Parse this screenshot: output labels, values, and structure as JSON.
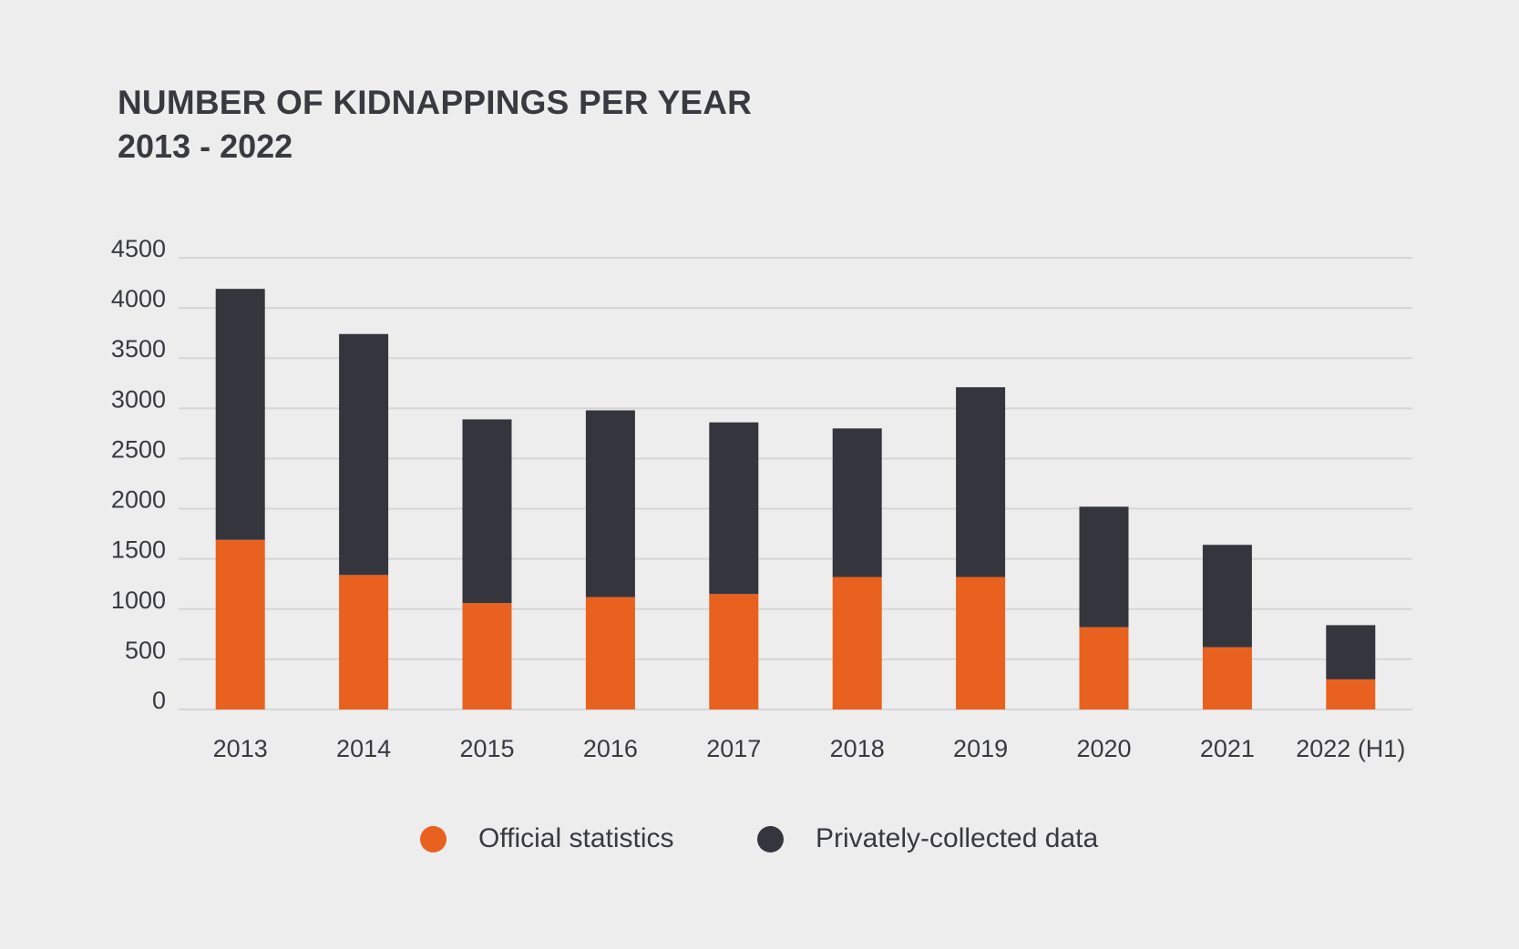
{
  "header": {
    "title": "NUMBER OF KIDNAPPINGS PER YEAR",
    "subtitle": "2013 - 2022"
  },
  "colors": {
    "official": "#e8611f",
    "private": "#35363d",
    "grid": "#d6d6d6",
    "text": "#383a40",
    "background": "#ededed"
  },
  "chart_data": {
    "type": "bar",
    "stacked": true,
    "title": "NUMBER OF KIDNAPPINGS PER YEAR",
    "subtitle": "2013 - 2022",
    "categories": [
      "2013",
      "2014",
      "2015",
      "2016",
      "2017",
      "2018",
      "2019",
      "2020",
      "2021",
      "2022 (H1)"
    ],
    "series": [
      {
        "name": "Official statistics",
        "values": [
          1690,
          1340,
          1060,
          1120,
          1150,
          1320,
          1320,
          820,
          620,
          300
        ]
      },
      {
        "name": "Privately-collected data",
        "values": [
          2500,
          2400,
          1830,
          1860,
          1710,
          1480,
          1890,
          1200,
          1020,
          540
        ]
      }
    ],
    "ylim": [
      0,
      4500
    ],
    "yticks": [
      0,
      500,
      1000,
      1500,
      2000,
      2500,
      3000,
      3500,
      4000,
      4500
    ],
    "grid": true,
    "legend_position": "bottom-center"
  },
  "legend": {
    "items": [
      {
        "label": "Official statistics",
        "color": "#e8611f"
      },
      {
        "label": "Privately-collected data",
        "color": "#35363d"
      }
    ]
  }
}
